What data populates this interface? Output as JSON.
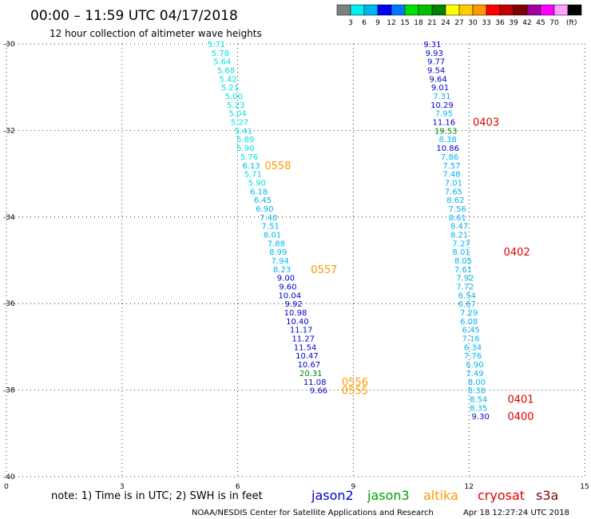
{
  "header": {
    "title": "00:00 – 11:59 UTC 04/17/2018",
    "subtitle": "12 hour collection of altimeter wave heights"
  },
  "colorbar": {
    "unit": "(ft)",
    "colors": [
      "#808080",
      "#00f0f0",
      "#00b4f0",
      "#0000f0",
      "#0078ff",
      "#00e000",
      "#00c000",
      "#008000",
      "#ffff00",
      "#ffcc00",
      "#ff9900",
      "#ff0000",
      "#c00000",
      "#800000",
      "#a000a0",
      "#ff00ff",
      "#ffa0ff",
      "#000000"
    ],
    "labels": [
      "3",
      "6",
      "9",
      "12",
      "15",
      "18",
      "21",
      "24",
      "27",
      "30",
      "33",
      "36",
      "39",
      "42",
      "45",
      "70"
    ]
  },
  "chart_data": {
    "type": "scatter",
    "x_ticks": [
      "0",
      "3",
      "6",
      "9",
      "12",
      "15"
    ],
    "y_ticks": [
      "-30",
      "-32",
      "-34",
      "-36",
      "-38",
      "-40"
    ],
    "xlim": [
      0,
      15
    ],
    "ylim": [
      -40,
      -30
    ],
    "grid": true,
    "series": [
      {
        "name": "altika",
        "color_key": "altika",
        "points": [
          {
            "x": 5.45,
            "y": -30.0,
            "label": "5.71",
            "c": "#00e0e0"
          },
          {
            "x": 5.55,
            "y": -30.2,
            "label": "5.78",
            "c": "#00e0e0"
          },
          {
            "x": 5.6,
            "y": -30.4,
            "label": "5.64",
            "c": "#00e0e0"
          },
          {
            "x": 5.7,
            "y": -30.6,
            "label": "5.68",
            "c": "#00e0e0"
          },
          {
            "x": 5.75,
            "y": -30.8,
            "label": "5.42",
            "c": "#00e0e0"
          },
          {
            "x": 5.8,
            "y": -31.0,
            "label": "5.21",
            "c": "#00e0e0"
          },
          {
            "x": 5.9,
            "y": -31.2,
            "label": "5.00",
            "c": "#00e0e0"
          },
          {
            "x": 5.95,
            "y": -31.4,
            "label": "5.23",
            "c": "#00e0e0"
          },
          {
            "x": 6.0,
            "y": -31.6,
            "label": "5.04",
            "c": "#00e0e0"
          },
          {
            "x": 6.05,
            "y": -31.8,
            "label": "5.27",
            "c": "#00e0e0"
          },
          {
            "x": 6.15,
            "y": -32.0,
            "label": "5.41",
            "c": "#00e0e0"
          },
          {
            "x": 6.2,
            "y": -32.2,
            "label": "5.89",
            "c": "#00e0e0"
          },
          {
            "x": 6.2,
            "y": -32.4,
            "label": "5.90",
            "c": "#00e0e0"
          },
          {
            "x": 6.3,
            "y": -32.6,
            "label": "5.76",
            "c": "#00e0e0"
          },
          {
            "x": 6.35,
            "y": -32.8,
            "label": "6.13",
            "c": "#00b4f0"
          },
          {
            "x": 6.4,
            "y": -33.0,
            "label": "5.71",
            "c": "#00e0e0"
          },
          {
            "x": 6.5,
            "y": -33.2,
            "label": "5.90",
            "c": "#00e0e0"
          },
          {
            "x": 6.55,
            "y": -33.4,
            "label": "6.18",
            "c": "#00b4f0"
          },
          {
            "x": 6.65,
            "y": -33.6,
            "label": "6.45",
            "c": "#00b4f0"
          },
          {
            "x": 6.7,
            "y": -33.8,
            "label": "6.90",
            "c": "#00b4f0"
          },
          {
            "x": 6.8,
            "y": -34.0,
            "label": "7.40",
            "c": "#00b4f0"
          },
          {
            "x": 6.85,
            "y": -34.2,
            "label": "7.51",
            "c": "#00b4f0"
          },
          {
            "x": 6.9,
            "y": -34.4,
            "label": "8.01",
            "c": "#00b4f0"
          },
          {
            "x": 7.0,
            "y": -34.6,
            "label": "7.88",
            "c": "#00b4f0"
          },
          {
            "x": 7.05,
            "y": -34.8,
            "label": "8.99",
            "c": "#00b4f0"
          }
        ]
      },
      {
        "name": "jason2",
        "color_key": "jason2",
        "points": [
          {
            "x": 7.1,
            "y": -35.0,
            "label": "7.94",
            "c": "#00b4f0"
          },
          {
            "x": 7.15,
            "y": -35.2,
            "label": "8.23",
            "c": "#00b4f0"
          },
          {
            "x": 7.25,
            "y": -35.4,
            "label": "9.00",
            "c": "#0000d0"
          },
          {
            "x": 7.3,
            "y": -35.6,
            "label": "9.60",
            "c": "#0000d0"
          },
          {
            "x": 7.35,
            "y": -35.8,
            "label": "10.04",
            "c": "#0000d0"
          },
          {
            "x": 7.45,
            "y": -36.0,
            "label": "9.92",
            "c": "#0000d0"
          },
          {
            "x": 7.5,
            "y": -36.2,
            "label": "10.98",
            "c": "#0000d0"
          },
          {
            "x": 7.55,
            "y": -36.4,
            "label": "10.40",
            "c": "#0000d0"
          },
          {
            "x": 7.65,
            "y": -36.6,
            "label": "11.17",
            "c": "#0000d0"
          },
          {
            "x": 7.7,
            "y": -36.8,
            "label": "11.27",
            "c": "#0000d0"
          },
          {
            "x": 7.75,
            "y": -37.0,
            "label": "11.54",
            "c": "#0000d0"
          },
          {
            "x": 7.8,
            "y": -37.2,
            "label": "10.47",
            "c": "#0000d0"
          },
          {
            "x": 7.85,
            "y": -37.4,
            "label": "10.67",
            "c": "#0000d0"
          },
          {
            "x": 7.9,
            "y": -37.6,
            "label": "20.31",
            "c": "#008000"
          },
          {
            "x": 8.0,
            "y": -37.8,
            "label": "11.08",
            "c": "#0000d0"
          },
          {
            "x": 8.1,
            "y": -38.0,
            "label": "9.66",
            "c": "#0000d0"
          }
        ]
      },
      {
        "name": "cryosat",
        "color_key": "cryosat",
        "points": [
          {
            "x": 11.05,
            "y": -30.0,
            "label": "9.31",
            "c": "#0000d0"
          },
          {
            "x": 11.1,
            "y": -30.2,
            "label": "9.93",
            "c": "#0000d0"
          },
          {
            "x": 11.15,
            "y": -30.4,
            "label": "9.77",
            "c": "#0000d0"
          },
          {
            "x": 11.15,
            "y": -30.6,
            "label": "9.54",
            "c": "#0000d0"
          },
          {
            "x": 11.2,
            "y": -30.8,
            "label": "9.64",
            "c": "#0000d0"
          },
          {
            "x": 11.25,
            "y": -31.0,
            "label": "9.01",
            "c": "#0000d0"
          },
          {
            "x": 11.3,
            "y": -31.2,
            "label": "7.31",
            "c": "#00b4f0"
          },
          {
            "x": 11.3,
            "y": -31.4,
            "label": "10.29",
            "c": "#0000d0"
          },
          {
            "x": 11.35,
            "y": -31.6,
            "label": "7.95",
            "c": "#00b4f0"
          },
          {
            "x": 11.35,
            "y": -31.8,
            "label": "11.16",
            "c": "#0000d0"
          },
          {
            "x": 11.4,
            "y": -32.0,
            "label": "19.53",
            "c": "#008000"
          },
          {
            "x": 11.45,
            "y": -32.2,
            "label": "8.38",
            "c": "#00b4f0"
          },
          {
            "x": 11.45,
            "y": -32.4,
            "label": "10.86",
            "c": "#0000d0"
          },
          {
            "x": 11.5,
            "y": -32.6,
            "label": "7.86",
            "c": "#00b4f0"
          },
          {
            "x": 11.55,
            "y": -32.8,
            "label": "7.57",
            "c": "#00b4f0"
          },
          {
            "x": 11.55,
            "y": -33.0,
            "label": "7.48",
            "c": "#00b4f0"
          },
          {
            "x": 11.6,
            "y": -33.2,
            "label": "7.01",
            "c": "#00b4f0"
          },
          {
            "x": 11.6,
            "y": -33.4,
            "label": "7.65",
            "c": "#00b4f0"
          },
          {
            "x": 11.65,
            "y": -33.6,
            "label": "8.62",
            "c": "#00b4f0"
          },
          {
            "x": 11.7,
            "y": -33.8,
            "label": "7.56",
            "c": "#00b4f0"
          },
          {
            "x": 11.7,
            "y": -34.0,
            "label": "8.61",
            "c": "#00b4f0"
          },
          {
            "x": 11.75,
            "y": -34.2,
            "label": "8.47",
            "c": "#00b4f0"
          },
          {
            "x": 11.75,
            "y": -34.4,
            "label": "8.21",
            "c": "#00b4f0"
          },
          {
            "x": 11.8,
            "y": -34.6,
            "label": "7.27",
            "c": "#00b4f0"
          },
          {
            "x": 11.8,
            "y": -34.8,
            "label": "8.01",
            "c": "#00b4f0"
          },
          {
            "x": 11.85,
            "y": -35.0,
            "label": "8.05",
            "c": "#00b4f0"
          },
          {
            "x": 11.85,
            "y": -35.2,
            "label": "7.61",
            "c": "#00b4f0"
          },
          {
            "x": 11.9,
            "y": -35.4,
            "label": "7.92",
            "c": "#00b4f0"
          },
          {
            "x": 11.9,
            "y": -35.6,
            "label": "7.72",
            "c": "#00b4f0"
          },
          {
            "x": 11.95,
            "y": -35.8,
            "label": "6.54",
            "c": "#00b4f0"
          },
          {
            "x": 11.95,
            "y": -36.0,
            "label": "6.67",
            "c": "#00b4f0"
          },
          {
            "x": 12.0,
            "y": -36.2,
            "label": "7.29",
            "c": "#00b4f0"
          },
          {
            "x": 12.0,
            "y": -36.4,
            "label": "6.08",
            "c": "#00b4f0"
          },
          {
            "x": 12.05,
            "y": -36.6,
            "label": "6.45",
            "c": "#00b4f0"
          },
          {
            "x": 12.05,
            "y": -36.8,
            "label": "7.16",
            "c": "#00b4f0"
          },
          {
            "x": 12.1,
            "y": -37.0,
            "label": "6.34",
            "c": "#00b4f0"
          },
          {
            "x": 12.1,
            "y": -37.2,
            "label": "7.76",
            "c": "#00b4f0"
          },
          {
            "x": 12.15,
            "y": -37.4,
            "label": "6.90",
            "c": "#00b4f0"
          },
          {
            "x": 12.15,
            "y": -37.6,
            "label": "7.49",
            "c": "#00b4f0"
          },
          {
            "x": 12.2,
            "y": -37.8,
            "label": "8.00",
            "c": "#00b4f0"
          },
          {
            "x": 12.2,
            "y": -38.0,
            "label": "8.38",
            "c": "#00b4f0"
          },
          {
            "x": 12.25,
            "y": -38.2,
            "label": "8.54",
            "c": "#00b4f0"
          },
          {
            "x": 12.25,
            "y": -38.4,
            "label": "8.35",
            "c": "#00b4f0"
          },
          {
            "x": 12.3,
            "y": -38.6,
            "label": "9.30",
            "c": "#0000d0"
          }
        ]
      }
    ],
    "time_labels": [
      {
        "x": 6.7,
        "y": -32.8,
        "label": "0558",
        "c": "#ff9900"
      },
      {
        "x": 7.9,
        "y": -35.2,
        "label": "0557",
        "c": "#ff9900"
      },
      {
        "x": 8.7,
        "y": -37.8,
        "label": "0556",
        "c": "#ff9900"
      },
      {
        "x": 8.7,
        "y": -38.0,
        "label": "0555",
        "c": "#ff9900"
      },
      {
        "x": 12.1,
        "y": -31.8,
        "label": "0403",
        "c": "#e00000"
      },
      {
        "x": 12.9,
        "y": -34.8,
        "label": "0402",
        "c": "#e00000"
      },
      {
        "x": 13.0,
        "y": -38.2,
        "label": "0401",
        "c": "#e00000"
      },
      {
        "x": 13.0,
        "y": -38.6,
        "label": "0400",
        "c": "#e00000"
      }
    ]
  },
  "note": "note:  1) Time is in UTC;  2) SWH is in feet",
  "legend": [
    {
      "label": "jason2",
      "color": "#0000d0"
    },
    {
      "label": "jason3",
      "color": "#00a000"
    },
    {
      "label": "altika",
      "color": "#ff9900"
    },
    {
      "label": "cryosat",
      "color": "#e00000"
    },
    {
      "label": "s3a",
      "color": "#800000"
    }
  ],
  "footer": {
    "credit": "NOAA/NESDIS Center for Satellite Applications and Research",
    "timestamp": "Apr 18 12:27:24 UTC 2018"
  }
}
